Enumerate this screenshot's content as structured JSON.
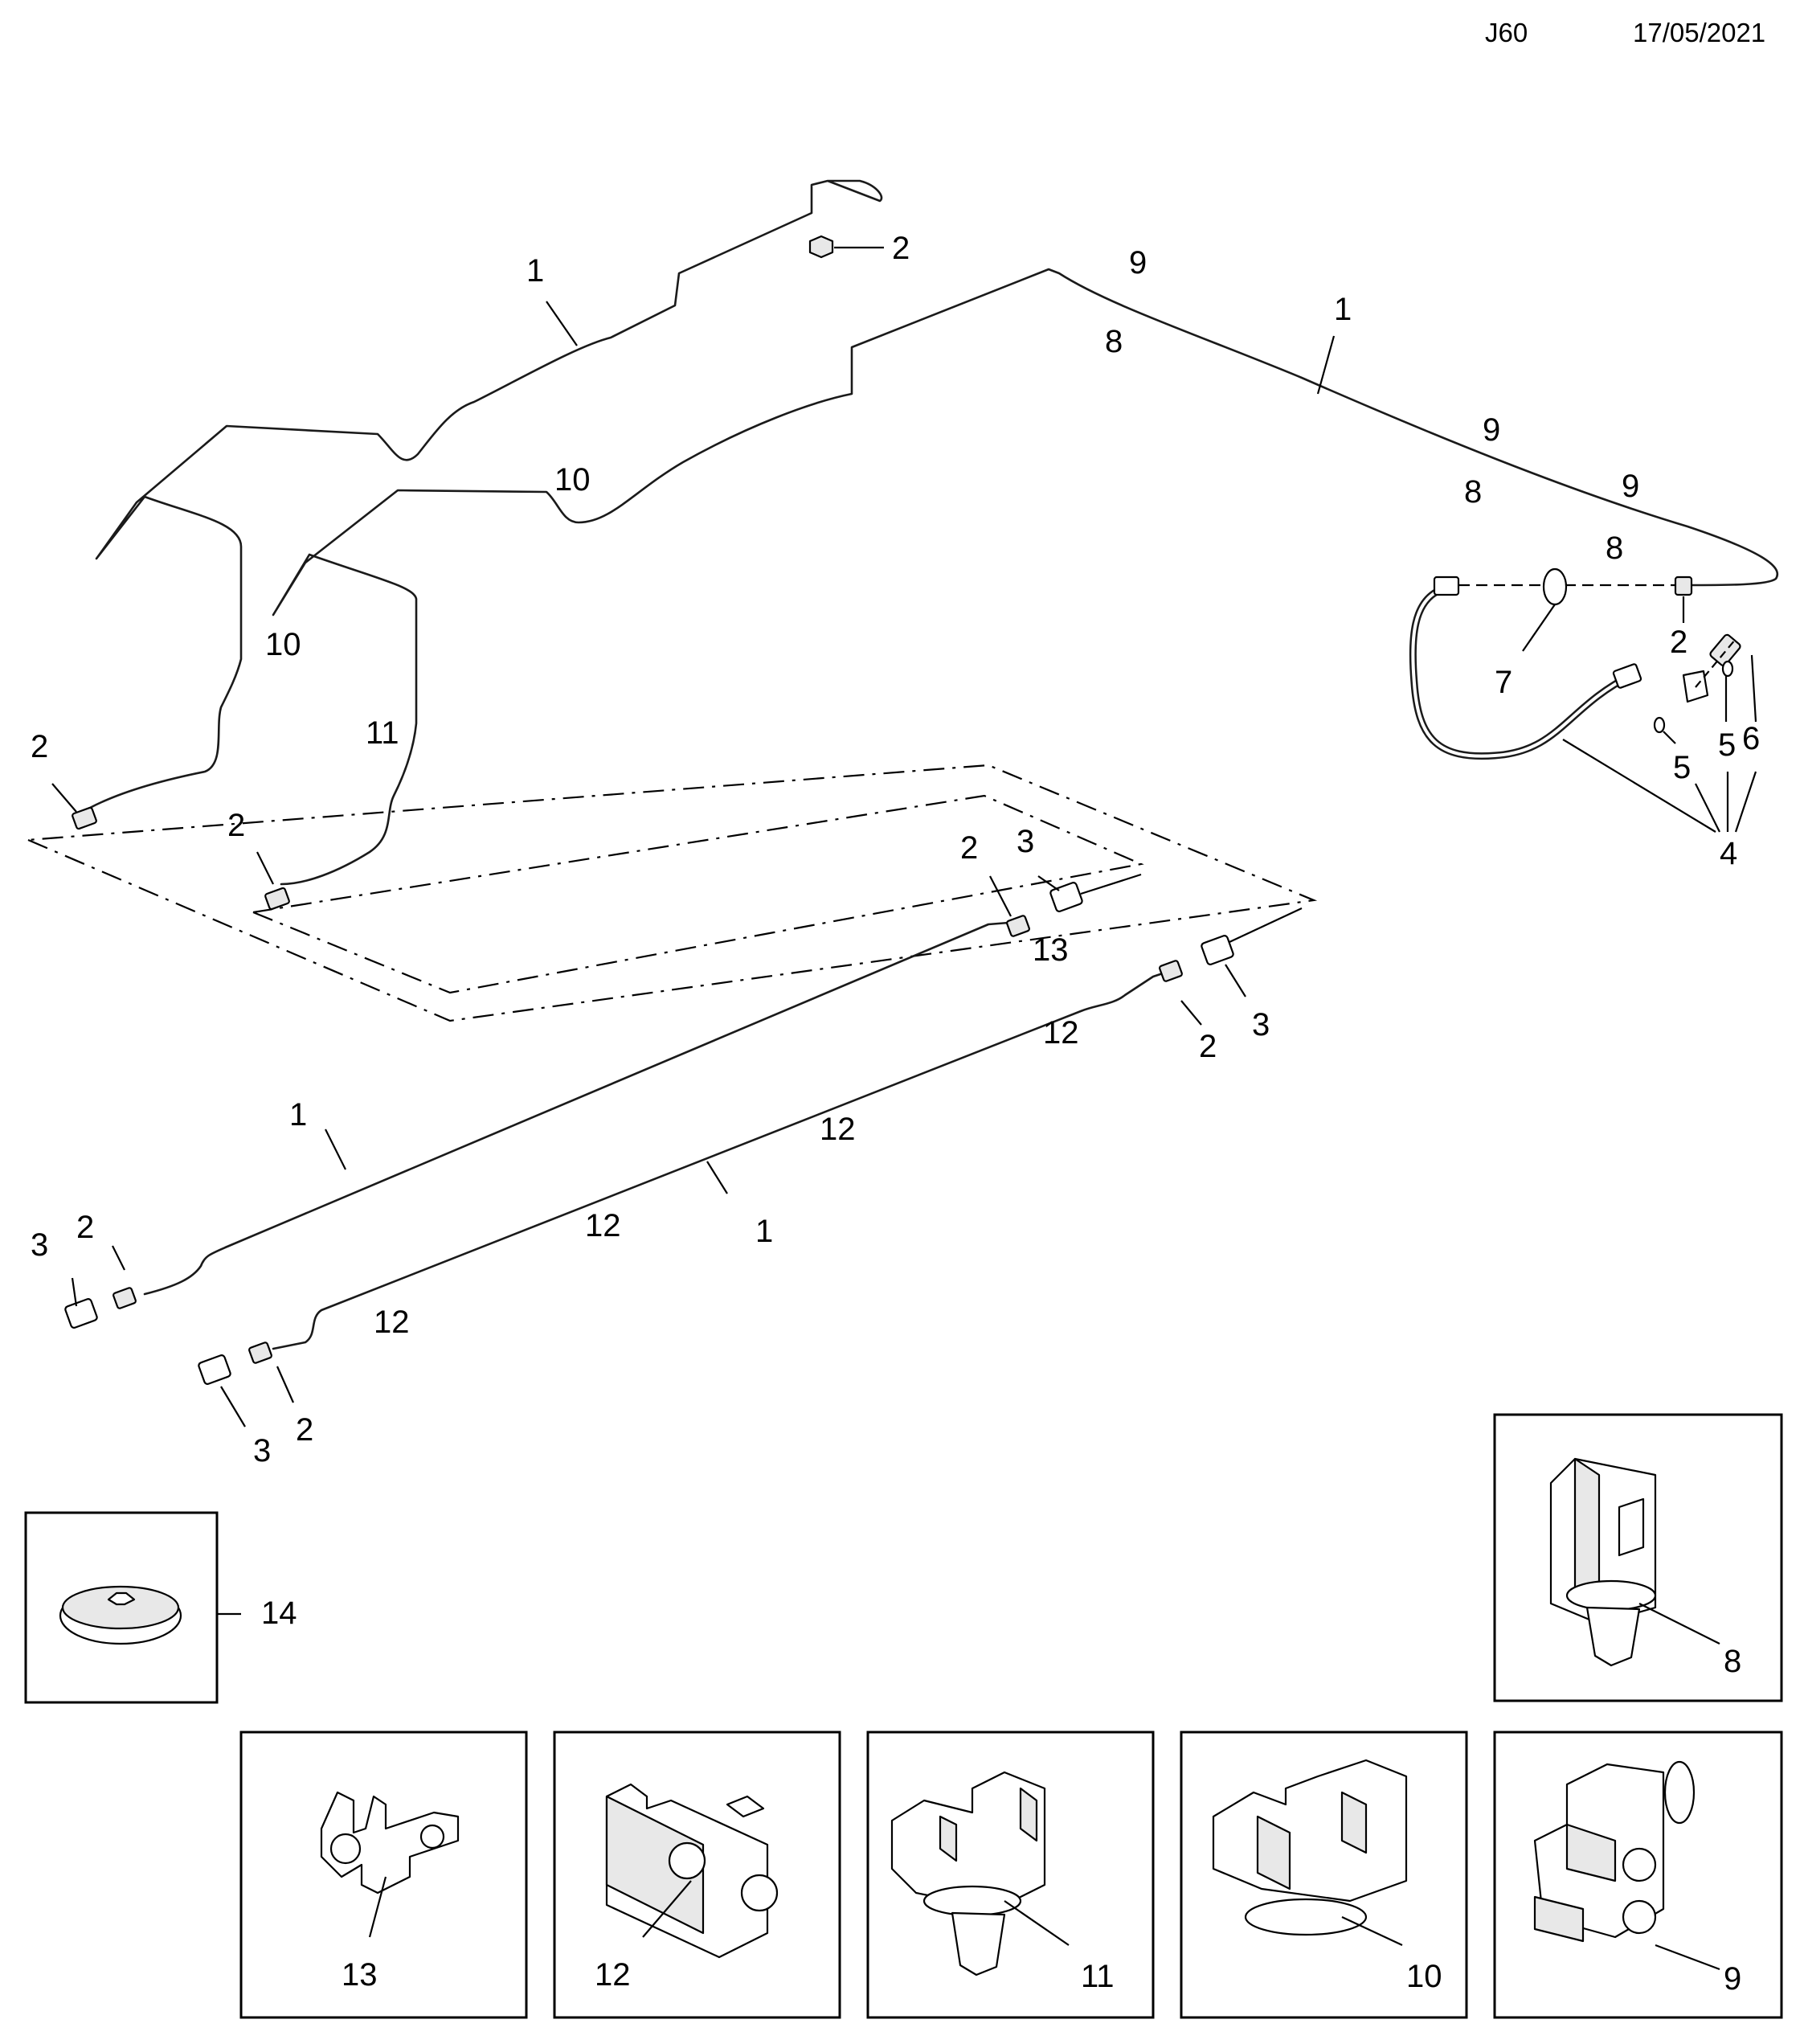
{
  "header": {
    "code": "J60",
    "date": "17/05/2021"
  },
  "callouts": {
    "c1a": "1",
    "c1b": "1",
    "c1c": "1",
    "c1d": "1",
    "c2a": "2",
    "c2b": "2",
    "c2c": "2",
    "c2d": "2",
    "c2e": "2",
    "c2f": "2",
    "c2g": "2",
    "c2h": "2",
    "c3a": "3",
    "c3b": "3",
    "c3c": "3",
    "c3d": "3",
    "c4": "4",
    "c5a": "5",
    "c5b": "5",
    "c6": "6",
    "c7": "7",
    "c8a": "8",
    "c8b": "8",
    "c8c": "8",
    "c9a": "9",
    "c9b": "9",
    "c9c": "9",
    "c10a": "10",
    "c10b": "10",
    "c11": "11",
    "c12a": "12",
    "c12b": "12",
    "c12c": "12",
    "c12d": "12",
    "c13": "13",
    "c14": "14"
  },
  "detail_boxes": {
    "box8": "8",
    "box9": "9",
    "box10": "10",
    "box11": "11",
    "box12": "12",
    "box13": "13",
    "box14": "14"
  }
}
